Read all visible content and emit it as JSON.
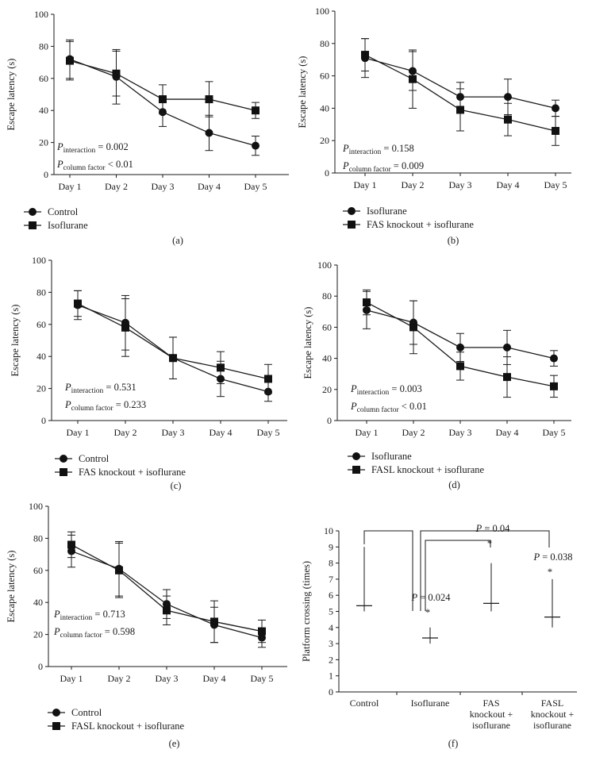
{
  "figure": "Escape latency and platform crossing panels",
  "chart_data": [
    {
      "panel": "(a)",
      "type": "line",
      "categories": [
        "Day 1",
        "Day 2",
        "Day 3",
        "Day 4",
        "Day 5"
      ],
      "ylabel": "Escape latency (s)",
      "ylim": [
        0,
        100
      ],
      "yticks": [
        0,
        20,
        40,
        60,
        80,
        100
      ],
      "series": [
        {
          "name": "Control",
          "marker": "circle",
          "values": [
            72,
            61,
            39,
            26,
            18
          ],
          "err": [
            12,
            17,
            9,
            11,
            6
          ]
        },
        {
          "name": "Isoflurane",
          "marker": "square",
          "values": [
            71,
            63,
            47,
            47,
            40
          ],
          "err": [
            12,
            14,
            9,
            11,
            5
          ]
        }
      ],
      "stats": {
        "p_interaction": "0.002",
        "p_column": "< 0.01"
      }
    },
    {
      "panel": "(b)",
      "type": "line",
      "categories": [
        "Day 1",
        "Day 2",
        "Day 3",
        "Day 4",
        "Day 5"
      ],
      "ylabel": "Escape latency (s)",
      "ylim": [
        0,
        100
      ],
      "yticks": [
        0,
        20,
        40,
        60,
        80,
        100
      ],
      "series": [
        {
          "name": "Isoflurane",
          "marker": "circle",
          "values": [
            71,
            63,
            47,
            47,
            40
          ],
          "err": [
            12,
            12,
            9,
            11,
            5
          ]
        },
        {
          "name": "FAS knockout + isoflurane",
          "marker": "square",
          "values": [
            73,
            58,
            39,
            33,
            26
          ],
          "err": [
            10,
            18,
            13,
            10,
            9
          ]
        }
      ],
      "stats": {
        "p_interaction": "0.158",
        "p_column": "0.009"
      }
    },
    {
      "panel": "(c)",
      "type": "line",
      "categories": [
        "Day 1",
        "Day 2",
        "Day 3",
        "Day 4",
        "Day 5"
      ],
      "ylabel": "Escape latency (s)",
      "ylim": [
        0,
        100
      ],
      "yticks": [
        0,
        20,
        40,
        60,
        80,
        100
      ],
      "series": [
        {
          "name": "Control",
          "marker": "circle",
          "values": [
            72,
            61,
            39,
            26,
            18
          ],
          "err": [
            9,
            17,
            13,
            11,
            6
          ]
        },
        {
          "name": "FAS knockout + isoflurane",
          "marker": "square",
          "values": [
            73,
            58,
            39,
            33,
            26
          ],
          "err": [
            8,
            18,
            13,
            10,
            9
          ]
        }
      ],
      "stats": {
        "p_interaction": "0.531",
        "p_column": "0.233"
      }
    },
    {
      "panel": "(d)",
      "type": "line",
      "categories": [
        "Day 1",
        "Day 2",
        "Day 3",
        "Day 4",
        "Day 5"
      ],
      "ylabel": "Escape latency (s)",
      "ylim": [
        0,
        100
      ],
      "yticks": [
        0,
        20,
        40,
        60,
        80,
        100
      ],
      "series": [
        {
          "name": "Isoflurane",
          "marker": "circle",
          "values": [
            71,
            63,
            47,
            47,
            40
          ],
          "err": [
            12,
            14,
            9,
            11,
            5
          ]
        },
        {
          "name": "FASL knockout + isoflurane",
          "marker": "square",
          "values": [
            76,
            60,
            35,
            28,
            22
          ],
          "err": [
            8,
            17,
            9,
            13,
            7
          ]
        }
      ],
      "stats": {
        "p_interaction": "0.003",
        "p_column": "< 0.01"
      }
    },
    {
      "panel": "(e)",
      "type": "line",
      "categories": [
        "Day 1",
        "Day 2",
        "Day 3",
        "Day 4",
        "Day 5"
      ],
      "ylabel": "Escape latency (s)",
      "ylim": [
        0,
        100
      ],
      "yticks": [
        0,
        20,
        40,
        60,
        80,
        100
      ],
      "series": [
        {
          "name": "Control",
          "marker": "circle",
          "values": [
            72,
            61,
            39,
            26,
            18
          ],
          "err": [
            10,
            17,
            9,
            11,
            6
          ]
        },
        {
          "name": "FASL knockout + isoflurane",
          "marker": "square",
          "values": [
            76,
            60,
            35,
            28,
            22
          ],
          "err": [
            8,
            17,
            9,
            13,
            7
          ]
        }
      ],
      "stats": {
        "p_interaction": "0.713",
        "p_column": "0.598"
      }
    },
    {
      "panel": "(f)",
      "type": "scatter",
      "categories": [
        "Control",
        "Isoflurane",
        "FAS knockout + isoflurane",
        "FASL knockout + isoflurane"
      ],
      "category_lines": [
        [
          "Control"
        ],
        [
          "Isoflurane"
        ],
        [
          "FAS",
          "knockout +",
          "isoflurane"
        ],
        [
          "FASL",
          "knockout +",
          "isoflurane"
        ]
      ],
      "ylabel": "Platform crossing (times)",
      "ylim": [
        0,
        10
      ],
      "yticks": [
        0,
        1,
        2,
        3,
        4,
        5,
        6,
        7,
        8,
        9,
        10
      ],
      "values": [
        5.35,
        3.35,
        5.5,
        4.65
      ],
      "lower": [
        5.0,
        3.0,
        5.0,
        4.0
      ],
      "upper": [
        9.0,
        4.0,
        8.0,
        7.0
      ],
      "comparisons": [
        {
          "groups": [
            "Control",
            "Isoflurane"
          ],
          "p": "P = 0.024",
          "star": "*"
        },
        {
          "groups": [
            "Isoflurane",
            "FAS knockout + isoflurane"
          ],
          "p": "P = 0.04",
          "star": "*"
        },
        {
          "groups": [
            "Isoflurane",
            "FASL knockout + isoflurane"
          ],
          "p": "P = 0.038",
          "star": "*"
        }
      ]
    }
  ]
}
